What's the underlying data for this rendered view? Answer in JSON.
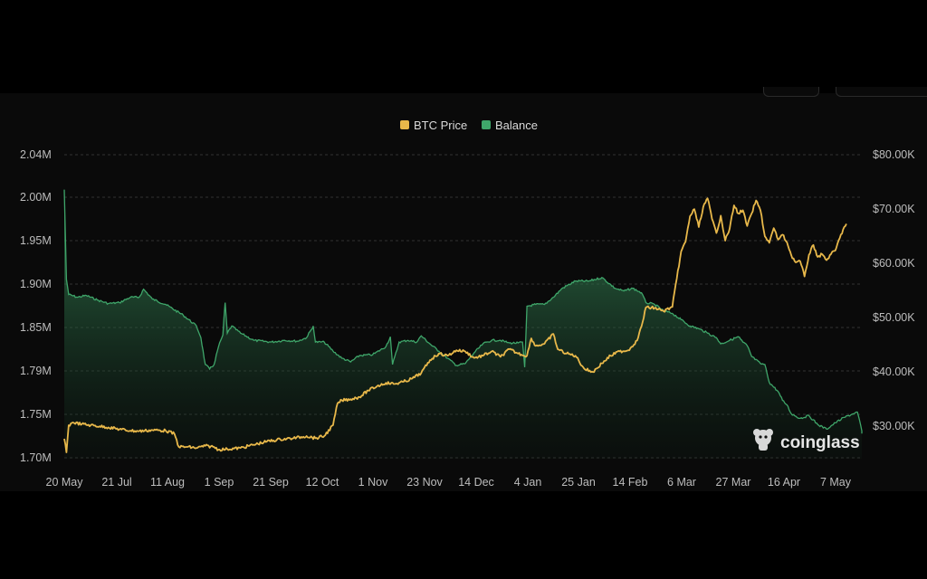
{
  "chart_data": {
    "type": "area",
    "title": "",
    "legend": {
      "placement": "top-center",
      "items": [
        {
          "label": "BTC Price",
          "color": "#e8b84a"
        },
        {
          "label": "Balance",
          "color": "#3fa66a"
        }
      ]
    },
    "x": {
      "ticks": [
        "20 May",
        "21 Jul",
        "11 Aug",
        "1 Sep",
        "21 Sep",
        "12 Oct",
        "1 Nov",
        "23 Nov",
        "14 Dec",
        "4 Jan",
        "25 Jan",
        "14 Feb",
        "6 Mar",
        "27 Mar",
        "16 Apr",
        "7 May"
      ],
      "range_days": [
        0,
        362
      ]
    },
    "y_left": {
      "ticks": [
        "2.04M",
        "2.00M",
        "1.95M",
        "1.90M",
        "1.85M",
        "1.79M",
        "1.75M",
        "1.70M"
      ],
      "range": [
        1.7,
        2.04
      ]
    },
    "y_right": {
      "ticks": [
        "$80.00K",
        "$70.00K",
        "$60.00K",
        "$50.00K",
        "$40.00K",
        "$30.00K"
      ],
      "range": [
        20000,
        80000
      ]
    },
    "grid": "horizontal dashed",
    "series": [
      {
        "name": "Balance",
        "axis": "left",
        "color": "#3fa66a",
        "points": [
          [
            0,
            2.0
          ],
          [
            1,
            1.9
          ],
          [
            2,
            1.883
          ],
          [
            6,
            1.88
          ],
          [
            10,
            1.882
          ],
          [
            15,
            1.877
          ],
          [
            20,
            1.873
          ],
          [
            25,
            1.874
          ],
          [
            30,
            1.88
          ],
          [
            34,
            1.88
          ],
          [
            36,
            1.889
          ],
          [
            40,
            1.878
          ],
          [
            46,
            1.872
          ],
          [
            54,
            1.86
          ],
          [
            60,
            1.848
          ],
          [
            62,
            1.835
          ],
          [
            64,
            1.805
          ],
          [
            66,
            1.8
          ],
          [
            68,
            1.805
          ],
          [
            70,
            1.825
          ],
          [
            72,
            1.838
          ],
          [
            73,
            1.874
          ],
          [
            74,
            1.84
          ],
          [
            76,
            1.848
          ],
          [
            80,
            1.84
          ],
          [
            86,
            1.832
          ],
          [
            94,
            1.83
          ],
          [
            100,
            1.832
          ],
          [
            106,
            1.831
          ],
          [
            110,
            1.835
          ],
          [
            113,
            1.848
          ],
          [
            114,
            1.83
          ],
          [
            118,
            1.83
          ],
          [
            122,
            1.82
          ],
          [
            126,
            1.812
          ],
          [
            130,
            1.808
          ],
          [
            134,
            1.815
          ],
          [
            140,
            1.816
          ],
          [
            146,
            1.825
          ],
          [
            148,
            1.836
          ],
          [
            149,
            1.805
          ],
          [
            152,
            1.83
          ],
          [
            156,
            1.832
          ],
          [
            160,
            1.83
          ],
          [
            162,
            1.837
          ],
          [
            166,
            1.828
          ],
          [
            170,
            1.82
          ],
          [
            174,
            1.812
          ],
          [
            178,
            1.804
          ],
          [
            182,
            1.806
          ],
          [
            186,
            1.818
          ],
          [
            190,
            1.828
          ],
          [
            194,
            1.832
          ],
          [
            198,
            1.832
          ],
          [
            202,
            1.829
          ],
          [
            206,
            1.829
          ],
          [
            208,
            1.83
          ],
          [
            209,
            1.802
          ],
          [
            210,
            1.87
          ],
          [
            214,
            1.872
          ],
          [
            218,
            1.872
          ],
          [
            222,
            1.88
          ],
          [
            226,
            1.89
          ],
          [
            232,
            1.898
          ],
          [
            238,
            1.898
          ],
          [
            244,
            1.902
          ],
          [
            250,
            1.89
          ],
          [
            254,
            1.887
          ],
          [
            258,
            1.89
          ],
          [
            262,
            1.885
          ],
          [
            264,
            1.874
          ],
          [
            268,
            1.872
          ],
          [
            272,
            1.865
          ],
          [
            276,
            1.862
          ],
          [
            280,
            1.855
          ],
          [
            284,
            1.848
          ],
          [
            288,
            1.845
          ],
          [
            292,
            1.84
          ],
          [
            296,
            1.835
          ],
          [
            298,
            1.828
          ],
          [
            302,
            1.832
          ],
          [
            306,
            1.836
          ],
          [
            308,
            1.83
          ],
          [
            310,
            1.826
          ],
          [
            312,
            1.814
          ],
          [
            316,
            1.806
          ],
          [
            318,
            1.805
          ],
          [
            320,
            1.785
          ],
          [
            324,
            1.775
          ],
          [
            326,
            1.765
          ],
          [
            328,
            1.76
          ],
          [
            330,
            1.75
          ],
          [
            334,
            1.745
          ],
          [
            338,
            1.748
          ],
          [
            342,
            1.738
          ],
          [
            346,
            1.733
          ],
          [
            350,
            1.74
          ],
          [
            354,
            1.746
          ],
          [
            358,
            1.75
          ],
          [
            360,
            1.752
          ],
          [
            362,
            1.731
          ],
          [
            364,
            1.728
          ]
        ]
      },
      {
        "name": "BTC Price",
        "axis": "right",
        "color": "#e8b84a",
        "points": [
          [
            0,
            27500
          ],
          [
            1,
            25000
          ],
          [
            2,
            30000
          ],
          [
            4,
            30500
          ],
          [
            8,
            30200
          ],
          [
            12,
            30000
          ],
          [
            16,
            29800
          ],
          [
            20,
            29600
          ],
          [
            26,
            29200
          ],
          [
            30,
            29000
          ],
          [
            34,
            28900
          ],
          [
            40,
            29100
          ],
          [
            46,
            29000
          ],
          [
            50,
            28400
          ],
          [
            52,
            26000
          ],
          [
            56,
            26000
          ],
          [
            60,
            25800
          ],
          [
            64,
            26200
          ],
          [
            68,
            26000
          ],
          [
            70,
            25500
          ],
          [
            74,
            25600
          ],
          [
            80,
            25800
          ],
          [
            86,
            26400
          ],
          [
            92,
            27000
          ],
          [
            98,
            27400
          ],
          [
            104,
            27600
          ],
          [
            110,
            28000
          ],
          [
            114,
            27600
          ],
          [
            118,
            28000
          ],
          [
            122,
            30000
          ],
          [
            124,
            34000
          ],
          [
            126,
            34600
          ],
          [
            130,
            34800
          ],
          [
            134,
            35200
          ],
          [
            138,
            36400
          ],
          [
            142,
            37200
          ],
          [
            146,
            37800
          ],
          [
            150,
            37600
          ],
          [
            154,
            38000
          ],
          [
            158,
            38600
          ],
          [
            162,
            39600
          ],
          [
            166,
            42000
          ],
          [
            170,
            43200
          ],
          [
            174,
            42800
          ],
          [
            178,
            43800
          ],
          [
            182,
            43600
          ],
          [
            186,
            42400
          ],
          [
            190,
            42800
          ],
          [
            194,
            43600
          ],
          [
            198,
            42600
          ],
          [
            202,
            44000
          ],
          [
            206,
            43200
          ],
          [
            210,
            42800
          ],
          [
            212,
            46000
          ],
          [
            214,
            44600
          ],
          [
            218,
            45000
          ],
          [
            222,
            46800
          ],
          [
            224,
            44000
          ],
          [
            228,
            43200
          ],
          [
            232,
            42800
          ],
          [
            236,
            40400
          ],
          [
            240,
            39800
          ],
          [
            244,
            41400
          ],
          [
            248,
            42800
          ],
          [
            252,
            43600
          ],
          [
            256,
            43800
          ],
          [
            260,
            45600
          ],
          [
            262,
            48200
          ],
          [
            264,
            51700
          ],
          [
            268,
            51600
          ],
          [
            272,
            51000
          ],
          [
            276,
            51800
          ],
          [
            278,
            57000
          ],
          [
            280,
            62000
          ],
          [
            282,
            63800
          ],
          [
            284,
            68500
          ],
          [
            286,
            69800
          ],
          [
            288,
            66500
          ],
          [
            290,
            70200
          ],
          [
            292,
            71800
          ],
          [
            294,
            68000
          ],
          [
            296,
            65400
          ],
          [
            298,
            68600
          ],
          [
            300,
            64000
          ],
          [
            302,
            66200
          ],
          [
            304,
            70500
          ],
          [
            306,
            69000
          ],
          [
            308,
            69600
          ],
          [
            310,
            66700
          ],
          [
            312,
            69000
          ],
          [
            314,
            71400
          ],
          [
            316,
            69600
          ],
          [
            318,
            64800
          ],
          [
            320,
            63600
          ],
          [
            322,
            66300
          ],
          [
            324,
            64200
          ],
          [
            326,
            65100
          ],
          [
            328,
            63700
          ],
          [
            330,
            61300
          ],
          [
            332,
            60000
          ],
          [
            334,
            60200
          ],
          [
            336,
            57400
          ],
          [
            338,
            61400
          ],
          [
            340,
            63200
          ],
          [
            342,
            61000
          ],
          [
            344,
            61500
          ],
          [
            346,
            60400
          ],
          [
            348,
            61500
          ],
          [
            350,
            62200
          ],
          [
            352,
            64500
          ],
          [
            354,
            66500
          ],
          [
            355,
            67100
          ]
        ]
      }
    ]
  },
  "watermark": "coinglass",
  "colors": {
    "background": "#0a0a0a",
    "grid": "#333333",
    "tick_text": "#bdbdbd",
    "price_line": "#e8b84a",
    "balance_line": "#3fa66a"
  }
}
